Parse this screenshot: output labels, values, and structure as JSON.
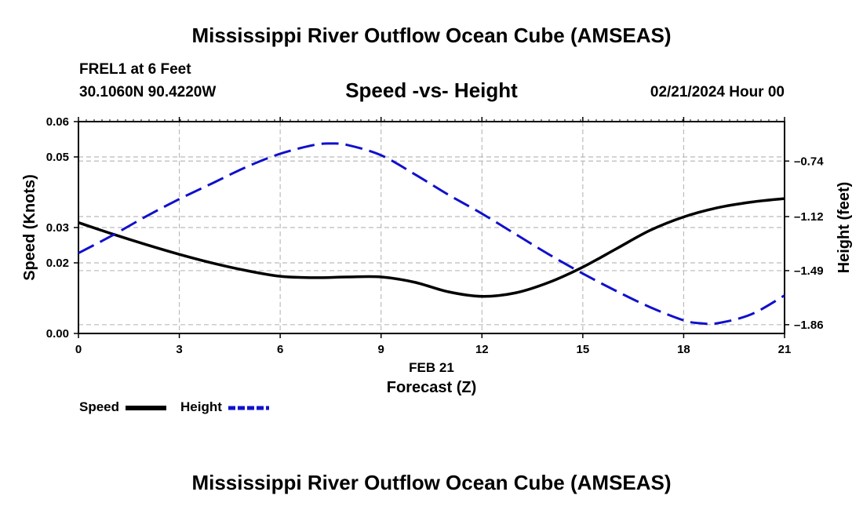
{
  "header": {
    "title": "Mississippi River Outflow Ocean Cube (AMSEAS)",
    "station": "FREL1 at 6 Feet",
    "coords": "30.1060N  90.4220W",
    "datetime": "02/21/2024 Hour 00"
  },
  "footer": {
    "title": "Mississippi River Outflow Ocean Cube (AMSEAS)"
  },
  "chart_data": {
    "type": "line",
    "title": "Speed -vs- Height",
    "xlabel_date": "FEB 21",
    "xlabel": "Forecast (Z)",
    "ylabel_left": "Speed (Knots)",
    "ylabel_right": "Height (feet)",
    "xlim": [
      0,
      21
    ],
    "x_ticks": [
      0,
      3,
      6,
      9,
      12,
      15,
      18,
      21
    ],
    "x_tick_labels": [
      "0",
      "3",
      "6",
      "9",
      "12",
      "15",
      "18",
      "21"
    ],
    "ylim_left": [
      0,
      0.06
    ],
    "y_left_ticks": [
      0.0,
      0.02,
      0.03,
      0.05,
      0.06
    ],
    "y_left_tick_labels": [
      "0.00",
      "0.02",
      "0.03",
      "0.05",
      "0.06"
    ],
    "ylim_right": [
      -1.92,
      -0.47
    ],
    "y_right_ticks": [
      -1.86,
      -1.49,
      -1.12,
      -0.74
    ],
    "y_right_tick_labels": [
      "–1.86",
      "–1.49",
      "–1.12",
      "–0.74"
    ],
    "grid": true,
    "legend_position": "bottom-left",
    "series": [
      {
        "name": "Speed",
        "axis": "left",
        "color": "#000000",
        "style": "solid",
        "x": [
          0,
          1,
          2,
          3,
          4,
          5,
          6,
          7,
          8,
          9,
          10,
          11,
          12,
          13,
          14,
          15,
          16,
          17,
          18,
          19,
          20,
          21
        ],
        "values": [
          0.0314,
          0.0282,
          0.0252,
          0.0224,
          0.0199,
          0.0178,
          0.0162,
          0.0158,
          0.016,
          0.016,
          0.0145,
          0.0118,
          0.0105,
          0.0115,
          0.0145,
          0.0188,
          0.024,
          0.0292,
          0.033,
          0.0356,
          0.0372,
          0.0382
        ]
      },
      {
        "name": "Height",
        "axis": "right",
        "color": "#1010cc",
        "style": "dashed",
        "x": [
          0,
          1,
          2,
          3,
          4,
          5,
          6,
          7,
          7.5,
          8,
          9,
          10,
          11,
          12,
          13,
          14,
          15,
          16,
          17,
          18,
          18.5,
          19,
          20,
          21
        ],
        "values": [
          -1.37,
          -1.25,
          -1.12,
          -1.0,
          -0.89,
          -0.78,
          -0.69,
          -0.63,
          -0.62,
          -0.63,
          -0.7,
          -0.83,
          -0.97,
          -1.1,
          -1.24,
          -1.38,
          -1.51,
          -1.63,
          -1.74,
          -1.83,
          -1.85,
          -1.85,
          -1.79,
          -1.66
        ]
      }
    ]
  }
}
